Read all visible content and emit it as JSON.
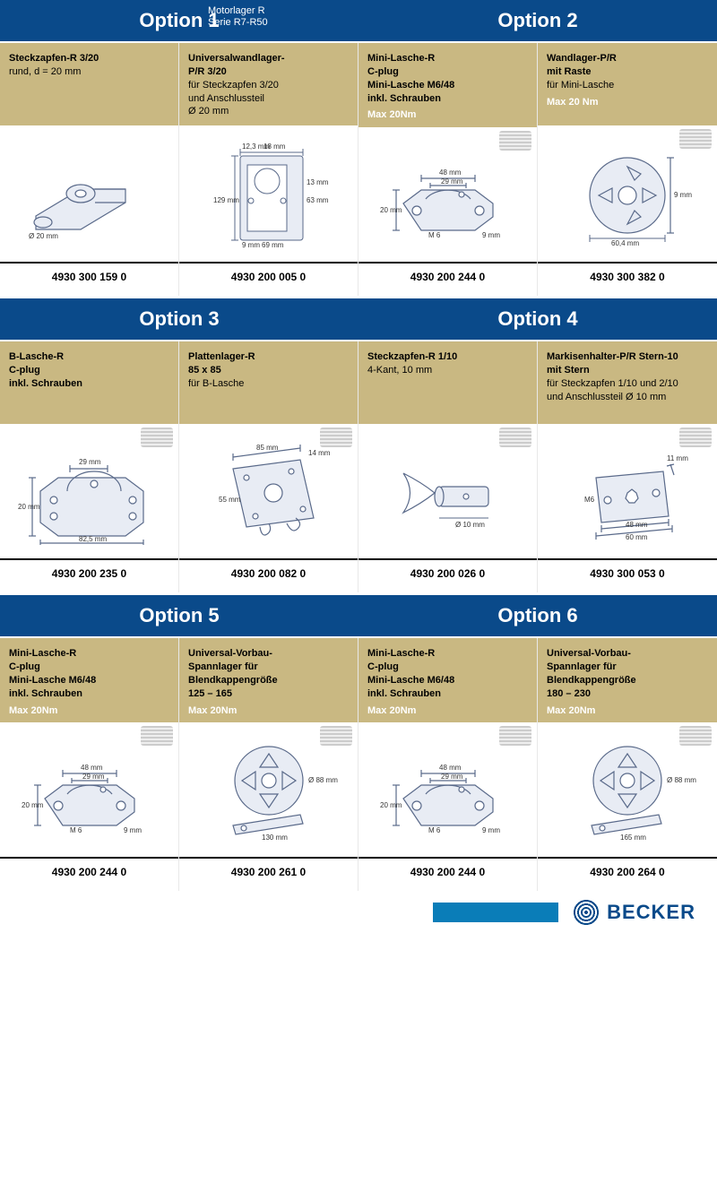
{
  "page_title_line1": "Motorlager R",
  "page_title_line2": "Serie R7-R50",
  "brand": "BECKER",
  "colors": {
    "header_bg": "#0a4a8a",
    "desc_bg": "#c9b882",
    "note_text": "#ffffff",
    "accent": "#0a7db8"
  },
  "options": [
    {
      "title": "Option 1",
      "items": [
        {
          "lines": [
            "Steckzapfen-R 3/20",
            "rund, d = 20 mm"
          ],
          "bold_lines": 1,
          "note": "",
          "pn": "4930 300 159 0",
          "diagram": "shaft",
          "dims": [
            "Ø 20 mm"
          ]
        },
        {
          "lines": [
            "Universalwandlager-",
            "P/R 3/20",
            "für Steckzapfen 3/20",
            "und Anschlussteil",
            "Ø 20 mm"
          ],
          "bold_lines": 2,
          "note": "",
          "pn": "4930 200 005 0",
          "diagram": "wallbracket",
          "dims": [
            "18 mm",
            "12,3 mm",
            "129 mm",
            "69 mm",
            "9 mm",
            "63 mm",
            "13 mm"
          ]
        }
      ]
    },
    {
      "title": "Option 2",
      "items": [
        {
          "lines": [
            "Mini-Lasche-R",
            "C-plug",
            "Mini-Lasche M6/48",
            "inkl. Schrauben"
          ],
          "bold_lines": 4,
          "note": "Max 20Nm",
          "pn": "4930 200 244 0",
          "diagram": "minilasche",
          "dims": [
            "48 mm",
            "29 mm",
            "20 mm",
            "M 6",
            "9 mm"
          ]
        },
        {
          "lines": [
            "Wandlager-P/R",
            "mit Raste",
            "für Mini-Lasche"
          ],
          "bold_lines": 2,
          "note": "Max 20 Nm",
          "pn": "4930 300 382 0",
          "diagram": "rounddisc",
          "dims": [
            "9 mm",
            "60,4 mm"
          ]
        }
      ]
    },
    {
      "title": "Option 3",
      "items": [
        {
          "lines": [
            "B-Lasche-R",
            "C-plug",
            "inkl. Schrauben"
          ],
          "bold_lines": 3,
          "note": "",
          "pn": "4930 200 235 0",
          "diagram": "blasche",
          "dims": [
            "29 mm",
            "20 mm",
            "82,5 mm"
          ]
        },
        {
          "lines": [
            "Plattenlager-R",
            "85 x 85",
            "für B-Lasche"
          ],
          "bold_lines": 2,
          "note": "",
          "pn": "4930 200 082 0",
          "diagram": "plate",
          "dims": [
            "85 mm",
            "14 mm",
            "55 mm"
          ]
        }
      ]
    },
    {
      "title": "Option 4",
      "items": [
        {
          "lines": [
            "Steckzapfen-R 1/10",
            "4-Kant, 10 mm"
          ],
          "bold_lines": 1,
          "note": "",
          "pn": "4930 200 026 0",
          "diagram": "pin",
          "dims": [
            "Ø 10 mm"
          ]
        },
        {
          "lines": [
            "Markisenhalter-P/R Stern-10",
            "mit Stern",
            "für Steckzapfen 1/10 und 2/10",
            "und Anschlussteil Ø 10 mm"
          ],
          "bold_lines": 2,
          "note": "",
          "pn": "4930 300 053 0",
          "diagram": "starbracket",
          "dims": [
            "11 mm",
            "M6",
            "48 mm",
            "60 mm"
          ]
        }
      ]
    },
    {
      "title": "Option 5",
      "items": [
        {
          "lines": [
            "Mini-Lasche-R",
            "C-plug",
            "Mini-Lasche M6/48",
            "inkl. Schrauben"
          ],
          "bold_lines": 4,
          "note": "Max 20Nm",
          "pn": "4930 200 244 0",
          "diagram": "minilasche",
          "dims": [
            "48 mm",
            "29 mm",
            "20 mm",
            "M 6",
            "9 mm"
          ]
        },
        {
          "lines": [
            "Universal-Vorbau-",
            "Spannlager für",
            "Blendkappengröße",
            "125 – 165"
          ],
          "bold_lines": 4,
          "note": "Max 20Nm",
          "pn": "4930 200 261 0",
          "diagram": "spanndisc",
          "dims": [
            "Ø 88 mm",
            "130 mm"
          ]
        }
      ]
    },
    {
      "title": "Option 6",
      "items": [
        {
          "lines": [
            "Mini-Lasche-R",
            "C-plug",
            "Mini-Lasche M6/48",
            "inkl. Schrauben"
          ],
          "bold_lines": 4,
          "note": "Max 20Nm",
          "pn": "4930 200 244 0",
          "diagram": "minilasche",
          "dims": [
            "48 mm",
            "29 mm",
            "20 mm",
            "M 6",
            "9 mm"
          ]
        },
        {
          "lines": [
            "Universal-Vorbau-",
            "Spannlager für",
            "Blendkappengröße",
            "180 – 230"
          ],
          "bold_lines": 4,
          "note": "Max 20Nm",
          "pn": "4930 200 264 0",
          "diagram": "spanndisc",
          "dims": [
            "Ø 88 mm",
            "165 mm"
          ]
        }
      ]
    }
  ]
}
